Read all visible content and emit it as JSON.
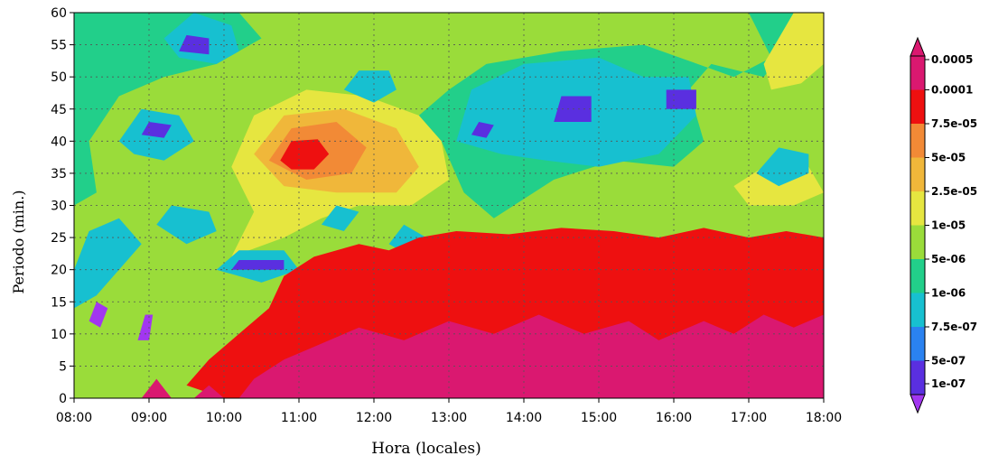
{
  "chart_data": {
    "type": "heatmap",
    "xlabel": "Hora (locales)",
    "ylabel": "Periodo (min.)",
    "x_ticks": [
      "08:00",
      "09:00",
      "10:00",
      "11:00",
      "12:00",
      "13:00",
      "14:00",
      "15:00",
      "16:00",
      "17:00",
      "18:00"
    ],
    "y_ticks": [
      "0",
      "5",
      "10",
      "15",
      "20",
      "25",
      "30",
      "35",
      "40",
      "45",
      "50",
      "55",
      "60"
    ],
    "xlim": [
      8,
      18
    ],
    "ylim": [
      0,
      60
    ],
    "grid": true,
    "colorbar": {
      "placement": "right",
      "levels": [
        "1e-07",
        "5e-07",
        "7.5e-07",
        "1e-06",
        "5e-06",
        "1e-05",
        "2.5e-05",
        "5e-05",
        "7.5e-05",
        "0.0001",
        "0.0005"
      ],
      "colors": [
        "#a236f0",
        "#5a2fe0",
        "#2a82f0",
        "#17c0d0",
        "#22cf8a",
        "#9adc3a",
        "#e6e640",
        "#f0b73a",
        "#f28a36",
        "#ee1010",
        "#da1870"
      ]
    },
    "regions": [
      {
        "level": 5,
        "comment_free": true,
        "points": []
      }
    ]
  }
}
